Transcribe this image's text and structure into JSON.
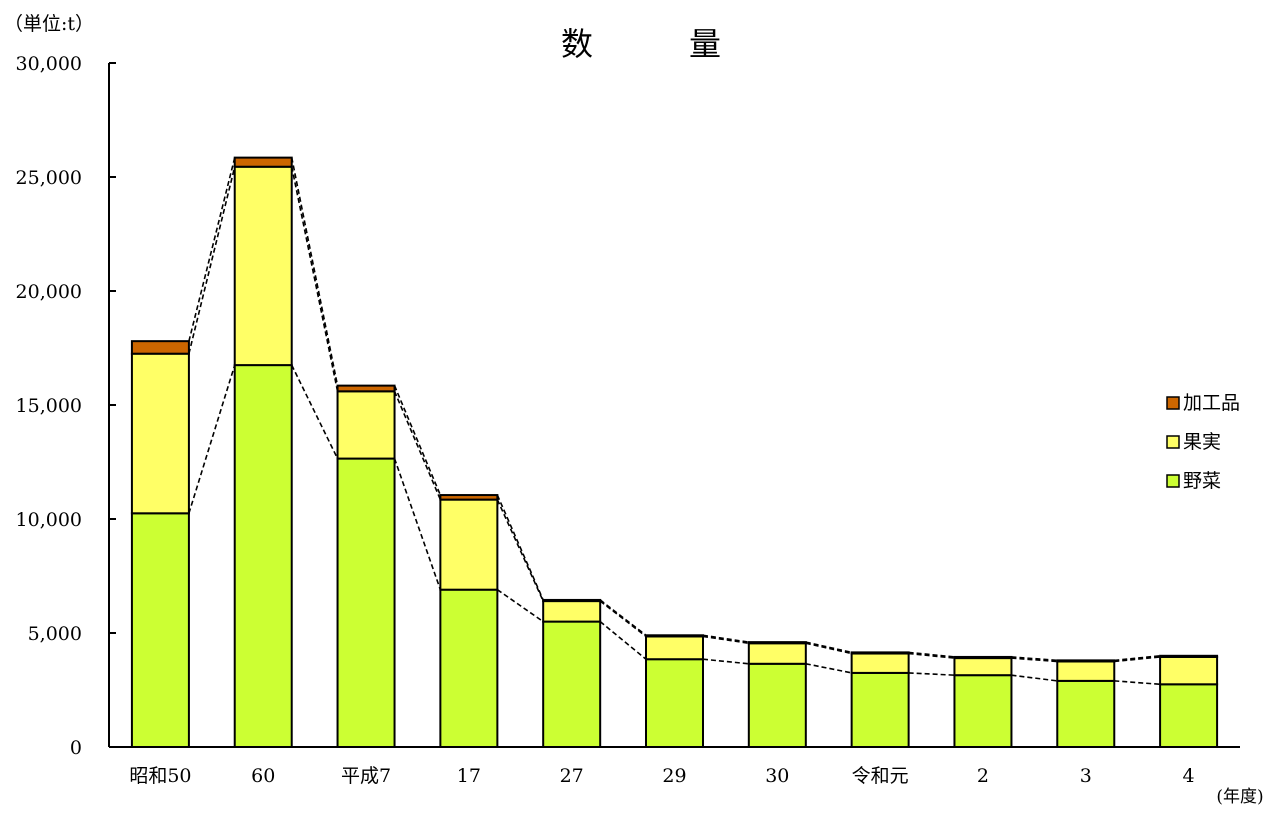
{
  "chart_data": {
    "type": "bar",
    "stacked": true,
    "title": "数　　　量",
    "unit_label": "（単位:t）",
    "x_unit_label": "(年度)",
    "categories": [
      "昭和50",
      "60",
      "平成7",
      "17",
      "27",
      "29",
      "30",
      "令和元",
      "2",
      "3",
      "4"
    ],
    "series": [
      {
        "name": "野菜",
        "color": "#ccff33",
        "values": [
          10250,
          16750,
          12650,
          6900,
          5500,
          3850,
          3650,
          3250,
          3150,
          2900,
          2750
        ]
      },
      {
        "name": "果実",
        "color": "#ffff66",
        "values": [
          7000,
          8700,
          2950,
          3950,
          900,
          1000,
          900,
          850,
          750,
          850,
          1200
        ]
      },
      {
        "name": "加工品",
        "color": "#cc6600",
        "values": [
          550,
          400,
          250,
          200,
          50,
          50,
          50,
          50,
          50,
          50,
          50
        ]
      }
    ],
    "ylim": [
      0,
      30000
    ],
    "yticks": [
      0,
      5000,
      10000,
      15000,
      20000,
      25000,
      30000
    ],
    "ytick_labels": [
      "0",
      "5,000",
      "10,000",
      "15,000",
      "20,000",
      "25,000",
      "30,000"
    ],
    "series_lines": "dashed lines connecting segment tops between bars",
    "legend_position": "right",
    "grid": false
  }
}
